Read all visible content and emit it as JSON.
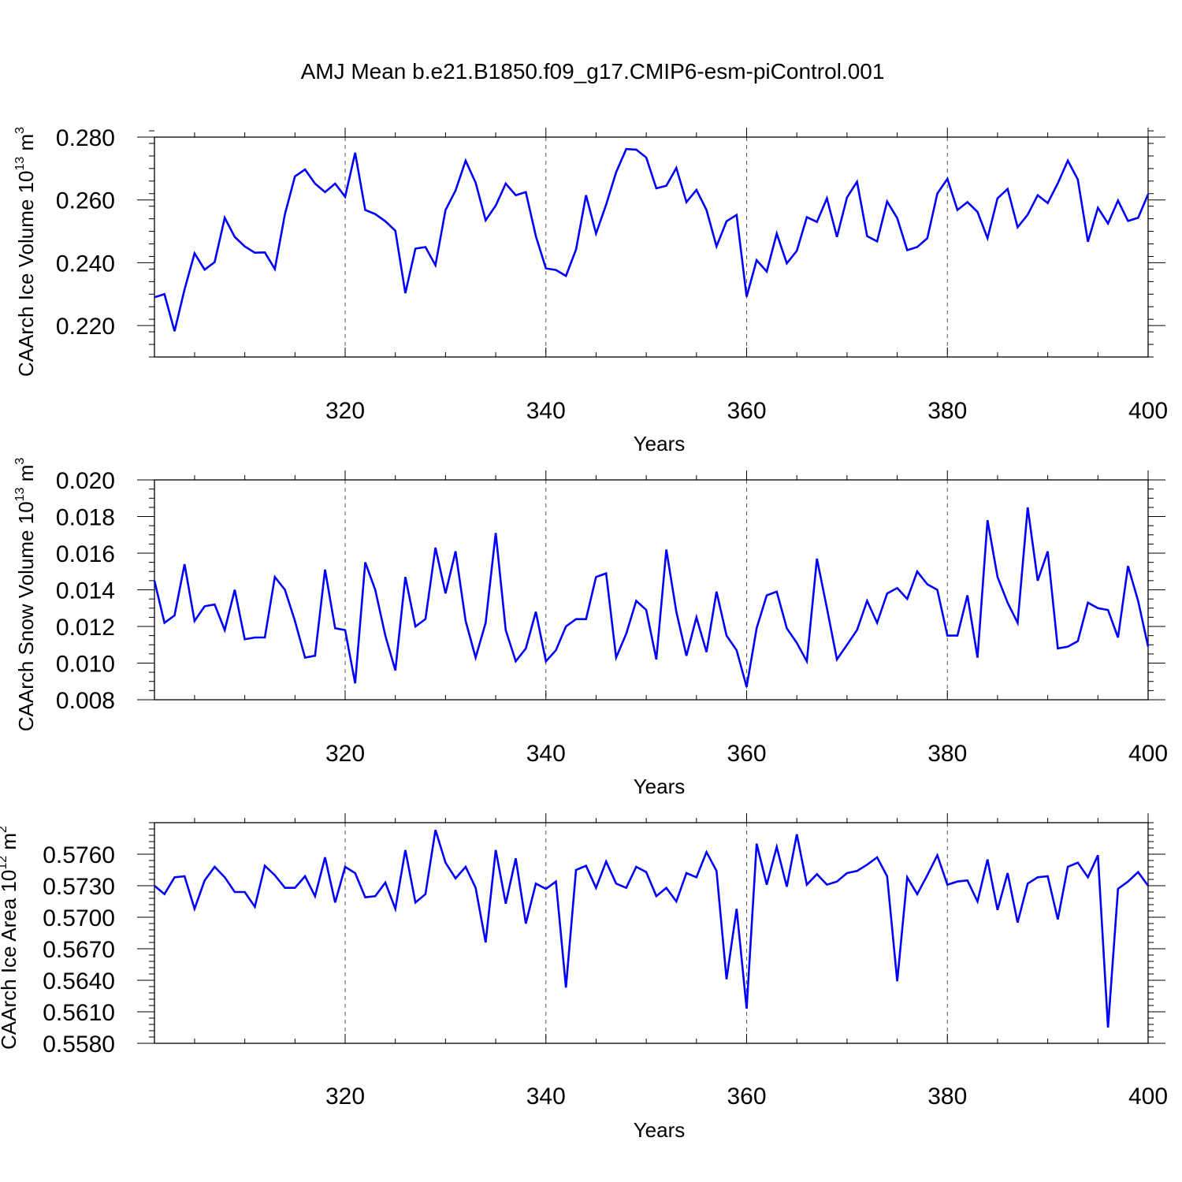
{
  "figure_title": "AMJ Mean b.e21.B1850.f09_g17.CMIP6-esm-piControl.001",
  "chart_data": [
    {
      "type": "line",
      "title": "",
      "ylabel_text": "CAArch Ice Volume 10",
      "ylabel_exp": "13",
      "ylabel_unit": " m",
      "ylabel_unit_exp": "3",
      "xlabel": "Years",
      "xlim": [
        301,
        400
      ],
      "ylim": [
        0.21,
        0.28
      ],
      "yticks": [
        0.22,
        0.24,
        0.26,
        0.28
      ],
      "ytick_labels": [
        "0.220",
        "0.240",
        "0.260",
        "0.280"
      ],
      "yminor_step": 0.004,
      "xticks": [
        320,
        340,
        360,
        380,
        400
      ],
      "xtick_labels": [
        "320",
        "340",
        "360",
        "380",
        "400"
      ],
      "grid_x": [
        320,
        340,
        360,
        380
      ],
      "color": "#0000ff",
      "series": [
        {
          "name": "CAArch Ice Volume",
          "x_start": 301,
          "values": [
            0.229,
            0.23,
            0.2182,
            0.2315,
            0.243,
            0.2378,
            0.2402,
            0.2543,
            0.2482,
            0.2452,
            0.2432,
            0.2433,
            0.238,
            0.2555,
            0.2675,
            0.2697,
            0.2652,
            0.2625,
            0.2652,
            0.261,
            0.275,
            0.2568,
            0.2555,
            0.2532,
            0.2502,
            0.2303,
            0.2445,
            0.245,
            0.2392,
            0.2568,
            0.263,
            0.2725,
            0.2655,
            0.2535,
            0.2582,
            0.2652,
            0.2615,
            0.2625,
            0.2485,
            0.2382,
            0.2377,
            0.2358,
            0.2442,
            0.2615,
            0.2493,
            0.2585,
            0.2688,
            0.2762,
            0.276,
            0.2735,
            0.2637,
            0.2645,
            0.2702,
            0.2593,
            0.2632,
            0.2568,
            0.2452,
            0.2532,
            0.2552,
            0.2292,
            0.2408,
            0.2372,
            0.2493,
            0.2398,
            0.2438,
            0.2545,
            0.253,
            0.2605,
            0.2482,
            0.2608,
            0.2658,
            0.2485,
            0.2468,
            0.2595,
            0.2542,
            0.244,
            0.245,
            0.2478,
            0.262,
            0.2667,
            0.2568,
            0.2593,
            0.2562,
            0.2478,
            0.2605,
            0.2635,
            0.2513,
            0.2553,
            0.2615,
            0.259,
            0.2653,
            0.2725,
            0.2665,
            0.2467,
            0.2575,
            0.2525,
            0.2598,
            0.2533,
            0.2543,
            0.2618
          ]
        }
      ]
    },
    {
      "type": "line",
      "title": "",
      "ylabel_text": "CAArch Snow Volume 10",
      "ylabel_exp": "13",
      "ylabel_unit": " m",
      "ylabel_unit_exp": "3",
      "xlabel": "Years",
      "xlim": [
        301,
        400
      ],
      "ylim": [
        0.008,
        0.02
      ],
      "yticks": [
        0.008,
        0.01,
        0.012,
        0.014,
        0.016,
        0.018,
        0.02
      ],
      "ytick_labels": [
        "0.008",
        "0.010",
        "0.012",
        "0.014",
        "0.016",
        "0.018",
        "0.020"
      ],
      "yminor_step": 0.0005,
      "xticks": [
        320,
        340,
        360,
        380,
        400
      ],
      "xtick_labels": [
        "320",
        "340",
        "360",
        "380",
        "400"
      ],
      "grid_x": [
        320,
        340,
        360,
        380
      ],
      "color": "#0000ff",
      "series": [
        {
          "name": "CAArch Snow Volume",
          "x_start": 301,
          "values": [
            0.0145,
            0.0122,
            0.0126,
            0.0154,
            0.0123,
            0.0131,
            0.0132,
            0.0118,
            0.014,
            0.0113,
            0.0114,
            0.0114,
            0.0147,
            0.014,
            0.0123,
            0.0103,
            0.0104,
            0.0151,
            0.0119,
            0.0118,
            0.0089,
            0.0155,
            0.014,
            0.0115,
            0.0096,
            0.0147,
            0.012,
            0.0124,
            0.0163,
            0.0138,
            0.0161,
            0.0123,
            0.0103,
            0.0122,
            0.0171,
            0.0118,
            0.0101,
            0.0108,
            0.0128,
            0.0101,
            0.0107,
            0.012,
            0.0124,
            0.0124,
            0.0147,
            0.0149,
            0.0103,
            0.0116,
            0.0134,
            0.0129,
            0.0102,
            0.0162,
            0.0128,
            0.0104,
            0.0125,
            0.0106,
            0.0139,
            0.0115,
            0.0107,
            0.0087,
            0.0119,
            0.0137,
            0.0139,
            0.0119,
            0.0111,
            0.0101,
            0.0157,
            0.013,
            0.0102,
            0.011,
            0.0118,
            0.0134,
            0.0122,
            0.0138,
            0.0141,
            0.0135,
            0.015,
            0.0143,
            0.014,
            0.0115,
            0.0115,
            0.0137,
            0.0103,
            0.0178,
            0.0147,
            0.0133,
            0.0122,
            0.0185,
            0.0145,
            0.0161,
            0.0108,
            0.0109,
            0.0112,
            0.0133,
            0.013,
            0.0129,
            0.0114,
            0.0153,
            0.0134,
            0.0109
          ]
        }
      ]
    },
    {
      "type": "line",
      "title": "",
      "ylabel_text": "CAArch Ice Area 10",
      "ylabel_exp": "12",
      "ylabel_unit": " m",
      "ylabel_unit_exp": "2",
      "xlabel": "Years",
      "xlim": [
        301,
        400
      ],
      "ylim": [
        0.558,
        0.579
      ],
      "yticks": [
        0.558,
        0.561,
        0.564,
        0.567,
        0.57,
        0.573,
        0.576
      ],
      "ytick_labels": [
        "0.5580",
        "0.5610",
        "0.5640",
        "0.5670",
        "0.5700",
        "0.5730",
        "0.5760"
      ],
      "yminor_step": 0.0006,
      "xticks": [
        320,
        340,
        360,
        380,
        400
      ],
      "xtick_labels": [
        "320",
        "340",
        "360",
        "380",
        "400"
      ],
      "grid_x": [
        320,
        340,
        360,
        380
      ],
      "color": "#0000ff",
      "series": [
        {
          "name": "CAArch Ice Area",
          "x_start": 301,
          "values": [
            0.573,
            0.5722,
            0.5738,
            0.5739,
            0.5708,
            0.5735,
            0.5748,
            0.5738,
            0.5724,
            0.5724,
            0.571,
            0.5749,
            0.574,
            0.5728,
            0.5728,
            0.5739,
            0.572,
            0.5757,
            0.5714,
            0.5748,
            0.5742,
            0.5719,
            0.572,
            0.5733,
            0.5708,
            0.5764,
            0.5714,
            0.5722,
            0.5783,
            0.5752,
            0.5737,
            0.5748,
            0.5728,
            0.5676,
            0.5764,
            0.5713,
            0.5756,
            0.5694,
            0.5732,
            0.5727,
            0.5734,
            0.5633,
            0.5745,
            0.5749,
            0.5728,
            0.5753,
            0.5732,
            0.5728,
            0.5748,
            0.5743,
            0.572,
            0.5728,
            0.5715,
            0.5742,
            0.5738,
            0.5762,
            0.5744,
            0.5641,
            0.5708,
            0.5613,
            0.577,
            0.5731,
            0.5767,
            0.5729,
            0.5779,
            0.5731,
            0.5741,
            0.5731,
            0.5734,
            0.5742,
            0.5744,
            0.575,
            0.5757,
            0.5739,
            0.5639,
            0.5738,
            0.5722,
            0.574,
            0.5759,
            0.5731,
            0.5734,
            0.5735,
            0.5715,
            0.5755,
            0.5707,
            0.5742,
            0.5695,
            0.5732,
            0.5738,
            0.5739,
            0.5698,
            0.5748,
            0.5752,
            0.5738,
            0.5759,
            0.5595,
            0.5727,
            0.5734,
            0.5743,
            0.573
          ]
        }
      ]
    }
  ]
}
